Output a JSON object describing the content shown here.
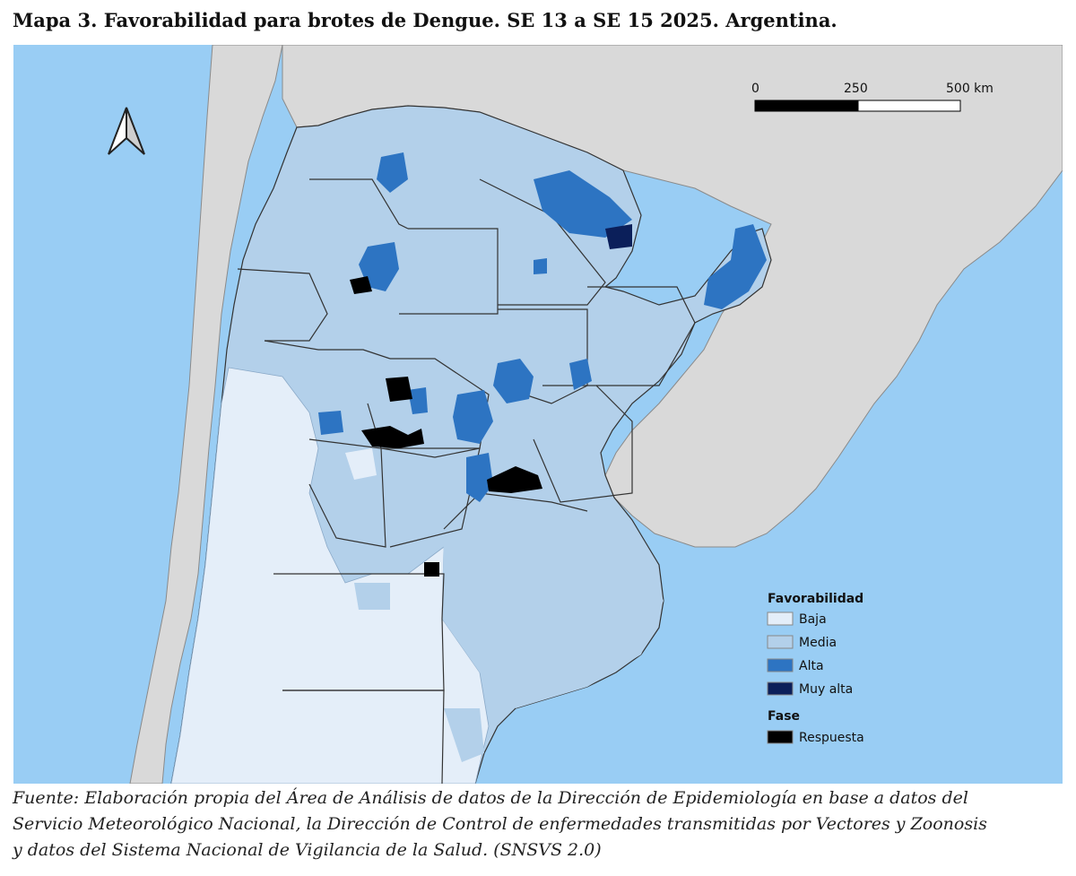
{
  "map": {
    "title": "Mapa 3. Favorabilidad para brotes de Dengue. SE 13 a SE 15 2025. Argentina.",
    "scale_bar": {
      "labels": [
        "0",
        "250",
        "500 km"
      ]
    },
    "north_arrow_icon": "north-arrow-icon",
    "legend": {
      "favorabilidad_title": "Favorabilidad",
      "favorabilidad_items": [
        {
          "label": "Baja",
          "color": "#e4eef9"
        },
        {
          "label": "Media",
          "color": "#b3d0ea"
        },
        {
          "label": "Alta",
          "color": "#2d74c2"
        },
        {
          "label": "Muy alta",
          "color": "#0b1f5a"
        }
      ],
      "fase_title": "Fase",
      "fase_items": [
        {
          "label": "Respuesta",
          "color": "#000000"
        }
      ]
    },
    "colors": {
      "ocean": "#99cdf4",
      "neighbor_land": "#d9d9d9",
      "borders": "#333333"
    }
  },
  "source": {
    "lines": [
      "Fuente: Elaboración propia del Área de Análisis de datos de la Dirección de Epidemiología en base a datos del",
      "Servicio Meteorológico Nacional, la Dirección de Control de enfermedades transmitidas por Vectores y Zoonosis",
      "y datos del Sistema Nacional de Vigilancia de la Salud. (SNSVS 2.0)"
    ]
  }
}
